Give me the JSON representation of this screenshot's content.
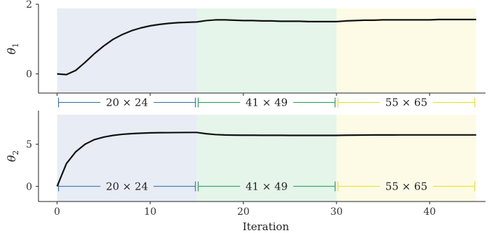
{
  "chart_data": {
    "type": "line",
    "xlabel": "Iteration",
    "xlim": [
      -2,
      46
    ],
    "xticks": [
      0,
      10,
      20,
      30,
      40
    ],
    "x": [
      0,
      1,
      2,
      3,
      4,
      5,
      6,
      7,
      8,
      9,
      10,
      11,
      12,
      13,
      14,
      15,
      16,
      17,
      18,
      19,
      20,
      21,
      22,
      23,
      24,
      25,
      26,
      27,
      28,
      29,
      30,
      31,
      32,
      33,
      34,
      35,
      36,
      37,
      38,
      39,
      40,
      41,
      42,
      43,
      44,
      45
    ],
    "regions": [
      {
        "start": 0,
        "end": 15,
        "label": "20 × 24",
        "fill": "#e7ecf5",
        "line": "#3b75af"
      },
      {
        "start": 15,
        "end": 30,
        "label": "41 × 49",
        "fill": "#e5f5ea",
        "line": "#2ca05a"
      },
      {
        "start": 30,
        "end": 45,
        "label": "55 × 65",
        "fill": "#fdfbe6",
        "line": "#e8e030"
      }
    ],
    "panels": [
      {
        "ylabel": "θ",
        "ylabel_sub": "1",
        "ylim": [
          -0.55,
          2.0
        ],
        "yticks": [
          0,
          2
        ],
        "span_y": -0.82,
        "series": [
          {
            "values": [
              0.0,
              -0.02,
              0.1,
              0.33,
              0.58,
              0.8,
              0.99,
              1.13,
              1.24,
              1.32,
              1.38,
              1.42,
              1.45,
              1.47,
              1.48,
              1.49,
              1.53,
              1.55,
              1.55,
              1.54,
              1.53,
              1.53,
              1.52,
              1.52,
              1.51,
              1.51,
              1.51,
              1.5,
              1.5,
              1.5,
              1.5,
              1.52,
              1.53,
              1.54,
              1.54,
              1.55,
              1.55,
              1.55,
              1.55,
              1.55,
              1.55,
              1.56,
              1.56,
              1.56,
              1.56,
              1.56
            ]
          }
        ]
      },
      {
        "ylabel": "θ",
        "ylabel_sub": "2",
        "ylim": [
          -1.8,
          9.0
        ],
        "yticks": [
          0,
          5
        ],
        "span_y": 0.0,
        "series": [
          {
            "values": [
              0.0,
              2.7,
              4.1,
              5.0,
              5.55,
              5.85,
              6.05,
              6.18,
              6.26,
              6.31,
              6.35,
              6.37,
              6.38,
              6.39,
              6.4,
              6.4,
              6.25,
              6.15,
              6.1,
              6.08,
              6.07,
              6.07,
              6.06,
              6.06,
              6.06,
              6.05,
              6.05,
              6.05,
              6.05,
              6.05,
              6.05,
              6.07,
              6.08,
              6.09,
              6.1,
              6.1,
              6.1,
              6.11,
              6.11,
              6.11,
              6.11,
              6.11,
              6.11,
              6.11,
              6.11,
              6.11
            ]
          }
        ]
      }
    ]
  }
}
